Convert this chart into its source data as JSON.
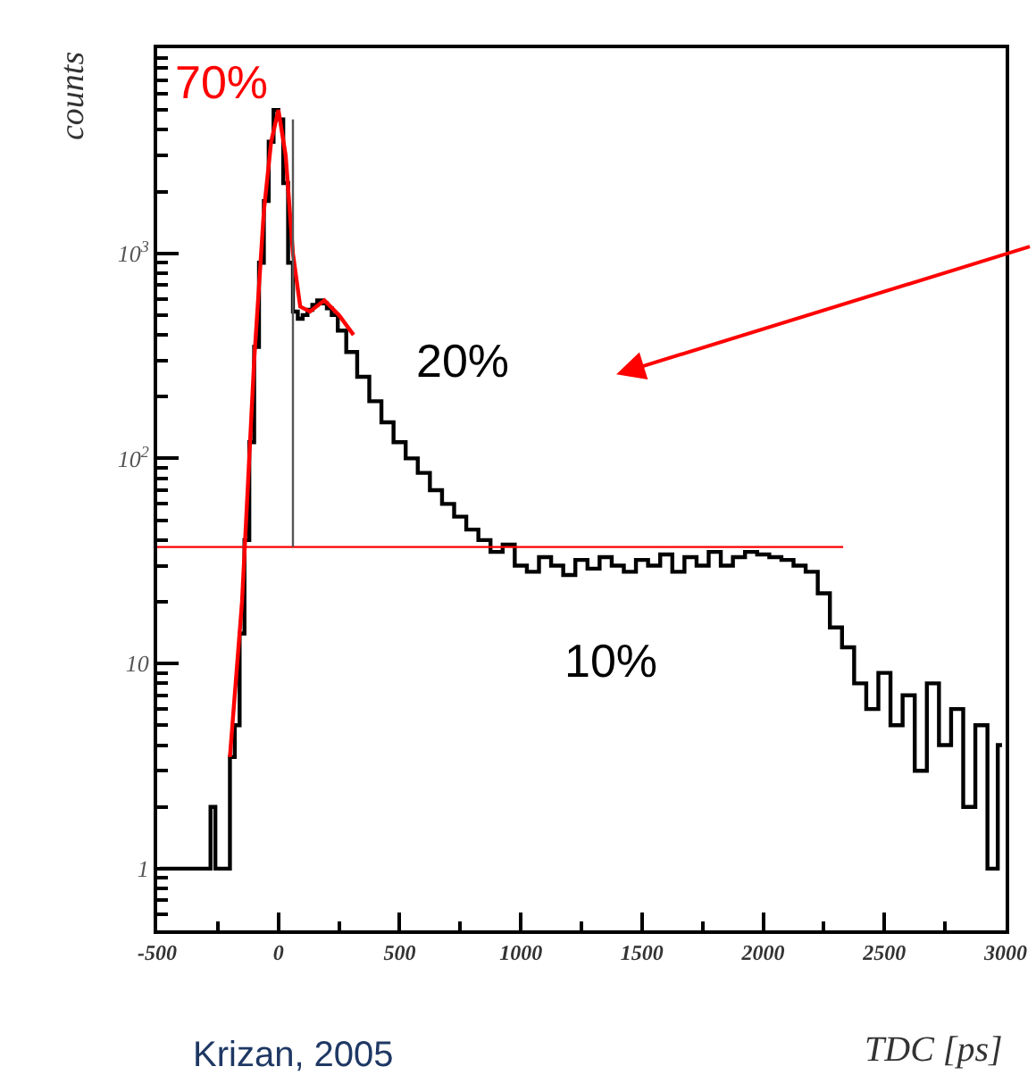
{
  "chart_data": {
    "type": "step",
    "xlabel": "TDC [ps]",
    "ylabel": "counts",
    "log": true,
    "grid": false,
    "marker": "none",
    "xlim": [
      -500,
      3000
    ],
    "ylim": [
      0.5,
      10000
    ],
    "xticks": [
      -500,
      0,
      500,
      1000,
      1500,
      2000,
      2500,
      3000
    ],
    "yticks": [
      1,
      10,
      {
        "value": 100,
        "label": "10$^{2}$"
      },
      {
        "value": 1000,
        "label": "10$^{3}$"
      }
    ],
    "annotations": [
      "70%",
      "20%",
      "10%",
      "Krizan, 2005"
    ],
    "series": [
      {
        "color": "#000000",
        "x": [
          -490,
          -470,
          -410,
          -370,
          -350,
          -330,
          -310,
          -290,
          -270,
          -250,
          -230,
          -210,
          -190,
          -170,
          -150,
          -130,
          -110,
          -90,
          -70,
          -50,
          -30,
          -10,
          10,
          30,
          50,
          70,
          90,
          110,
          130,
          150,
          170,
          190,
          210,
          230,
          260,
          300,
          350,
          400,
          450,
          500,
          550,
          600,
          650,
          700,
          750,
          800,
          850,
          900,
          950,
          1000,
          1050,
          1100,
          1150,
          1200,
          1250,
          1300,
          1350,
          1400,
          1450,
          1500,
          1550,
          1600,
          1650,
          1700,
          1750,
          1800,
          1850,
          1900,
          1950,
          2000,
          2050,
          2100,
          2150,
          2200,
          2250,
          2300,
          2350,
          2400,
          2450,
          2500,
          2550,
          2600,
          2650,
          2700,
          2750,
          2800,
          2850,
          2900,
          2950,
          2985
        ],
        "values": [
          1,
          1,
          1,
          1,
          1,
          1,
          1,
          1,
          2,
          1,
          1,
          1,
          3.5,
          5,
          14,
          40,
          120,
          350,
          900,
          1800,
          3500,
          5000,
          4500,
          2200,
          900,
          520,
          480,
          500,
          530,
          560,
          590,
          570,
          540,
          500,
          420,
          330,
          250,
          190,
          150,
          120,
          100,
          85,
          70,
          60,
          52,
          45,
          40,
          35,
          38,
          30,
          28,
          33,
          30,
          27,
          32,
          29,
          33,
          30,
          28,
          32,
          30,
          34,
          28,
          33,
          30,
          35,
          30,
          33,
          35,
          34,
          33,
          32,
          30,
          28,
          22,
          15,
          12,
          8,
          6,
          9,
          5,
          7,
          3,
          8,
          4,
          6,
          2,
          5,
          1,
          4
        ]
      },
      {
        "type": "line",
        "color": "#ff0000",
        "x": [
          -200,
          -150,
          -100,
          -60,
          -30,
          0,
          30,
          60,
          90,
          130,
          190,
          250,
          310
        ],
        "values": [
          3.5,
          20,
          300,
          1600,
          3500,
          5000,
          3000,
          1000,
          550,
          520,
          590,
          500,
          400
        ]
      },
      {
        "type": "line",
        "color": "#ff0000",
        "x": [
          -500,
          2330
        ],
        "values": [
          37,
          37
        ]
      },
      {
        "type": "line",
        "color": "#555555",
        "x": [
          60,
          60
        ],
        "values": [
          37,
          4500
        ]
      }
    ]
  }
}
